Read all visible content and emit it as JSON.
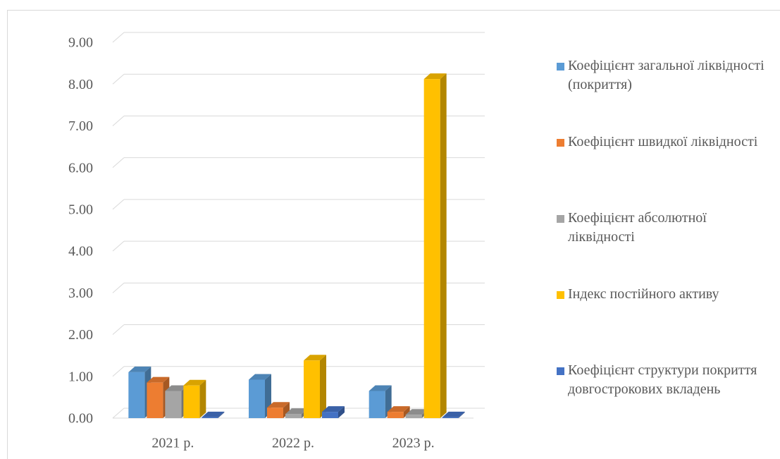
{
  "chart_data": {
    "type": "bar3d",
    "categories": [
      "2021 р.",
      "2022 р.",
      "2023 р."
    ],
    "series": [
      {
        "name": "Коефіцієнт загальної ліквідності (покриття)",
        "color": "#5b9bd5",
        "values": [
          1.1,
          0.92,
          0.65
        ]
      },
      {
        "name": "Коефіцієнт швидкої ліквідності",
        "color": "#ed7d31",
        "values": [
          0.85,
          0.25,
          0.15
        ]
      },
      {
        "name": "Коефіцієнт абсолютної ліквідності",
        "color": "#a5a5a5",
        "values": [
          0.65,
          0.1,
          0.08
        ]
      },
      {
        "name": "Індекс постійного активу",
        "color": "#ffc000",
        "values": [
          0.78,
          1.38,
          8.12
        ]
      },
      {
        "name": "Коефіцієнт структури покриття довгострокових вкладень",
        "color": "#4472c4",
        "values": [
          0.02,
          0.15,
          0.02
        ]
      }
    ],
    "ylim": [
      0,
      9
    ],
    "yticks": [
      {
        "value": 0,
        "label": "0.00"
      },
      {
        "value": 1,
        "label": "1.00"
      },
      {
        "value": 2,
        "label": "2.00"
      },
      {
        "value": 3,
        "label": "3.00"
      },
      {
        "value": 4,
        "label": "4.00"
      },
      {
        "value": 5,
        "label": "5.00"
      },
      {
        "value": 6,
        "label": "6.00"
      },
      {
        "value": 7,
        "label": "7.00"
      },
      {
        "value": 8,
        "label": "8.00"
      },
      {
        "value": 9,
        "label": "9.00"
      }
    ],
    "grid": true,
    "legend": "right"
  }
}
